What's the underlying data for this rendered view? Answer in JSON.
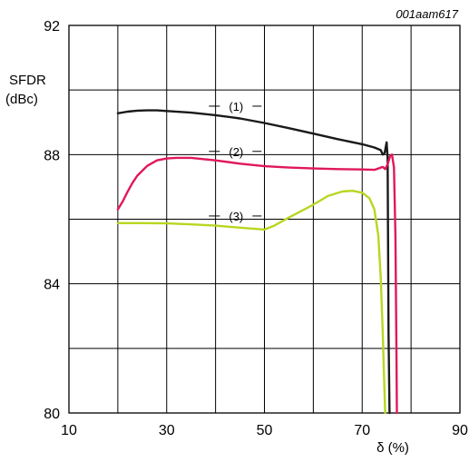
{
  "reference": "001aam617",
  "chart_data": {
    "type": "line",
    "ylabel_line1": "SFDR",
    "ylabel_line2": "(dBc)",
    "xlabel": "δ (%)",
    "xlim": [
      10,
      90
    ],
    "ylim": [
      80,
      92
    ],
    "x_ticks": [
      10,
      30,
      50,
      70,
      90
    ],
    "y_ticks": [
      80,
      84,
      88,
      92
    ],
    "x_grid": [
      10,
      20,
      30,
      40,
      50,
      60,
      70,
      80,
      90
    ],
    "y_grid": [
      80,
      82,
      84,
      86,
      88,
      90,
      92
    ],
    "grid": true,
    "series": [
      {
        "name": "(1)",
        "color": "#1a1a1a",
        "label_at": [
          40.5,
          89.5
        ],
        "points": [
          [
            20,
            89.28
          ],
          [
            22,
            89.33
          ],
          [
            24,
            89.36
          ],
          [
            26,
            89.37
          ],
          [
            28,
            89.37
          ],
          [
            30,
            89.35
          ],
          [
            35,
            89.3
          ],
          [
            40,
            89.22
          ],
          [
            45,
            89.12
          ],
          [
            50,
            88.98
          ],
          [
            55,
            88.82
          ],
          [
            60,
            88.65
          ],
          [
            65,
            88.48
          ],
          [
            70,
            88.32
          ],
          [
            72.5,
            88.22
          ],
          [
            73.8,
            88.14
          ],
          [
            74.2,
            88.0
          ],
          [
            74.6,
            88.05
          ],
          [
            75,
            88.38
          ],
          [
            75.2,
            87.9
          ],
          [
            75.4,
            82.5
          ],
          [
            75.6,
            80.0
          ]
        ]
      },
      {
        "name": "(2)",
        "color": "#e0185a",
        "label_at": [
          40.5,
          88.1
        ],
        "points": [
          [
            20,
            86.3
          ],
          [
            21,
            86.55
          ],
          [
            22,
            86.85
          ],
          [
            23,
            87.12
          ],
          [
            24,
            87.35
          ],
          [
            26,
            87.65
          ],
          [
            28,
            87.82
          ],
          [
            30,
            87.88
          ],
          [
            32,
            87.9
          ],
          [
            35,
            87.9
          ],
          [
            40,
            87.82
          ],
          [
            45,
            87.72
          ],
          [
            50,
            87.64
          ],
          [
            55,
            87.6
          ],
          [
            60,
            87.57
          ],
          [
            65,
            87.55
          ],
          [
            70,
            87.54
          ],
          [
            72.5,
            87.53
          ],
          [
            73.5,
            87.58
          ],
          [
            74.2,
            87.62
          ],
          [
            74.7,
            87.55
          ],
          [
            75.2,
            87.7
          ],
          [
            75.7,
            87.95
          ],
          [
            76.1,
            88.0
          ],
          [
            76.5,
            87.6
          ],
          [
            76.8,
            85.5
          ],
          [
            77.0,
            82.0
          ],
          [
            77.1,
            80.0
          ]
        ]
      },
      {
        "name": "(3)",
        "color": "#b8d620",
        "label_at": [
          40.5,
          86.1
        ],
        "points": [
          [
            20,
            85.88
          ],
          [
            25,
            85.88
          ],
          [
            30,
            85.87
          ],
          [
            35,
            85.84
          ],
          [
            40,
            85.8
          ],
          [
            45,
            85.74
          ],
          [
            50,
            85.68
          ],
          [
            52,
            85.8
          ],
          [
            55,
            86.05
          ],
          [
            60,
            86.45
          ],
          [
            63,
            86.72
          ],
          [
            66,
            86.86
          ],
          [
            68,
            86.88
          ],
          [
            70,
            86.82
          ],
          [
            71.5,
            86.65
          ],
          [
            72.5,
            86.3
          ],
          [
            73.3,
            85.5
          ],
          [
            73.8,
            84.2
          ],
          [
            74.2,
            82.5
          ],
          [
            74.5,
            81.0
          ],
          [
            74.7,
            80.0
          ]
        ]
      }
    ]
  }
}
